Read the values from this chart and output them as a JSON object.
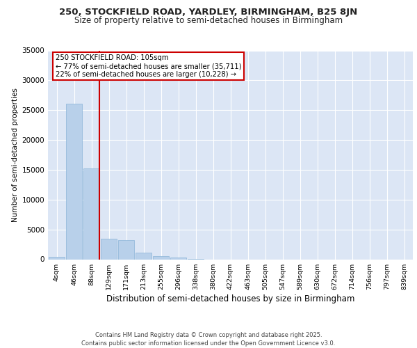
{
  "title": "250, STOCKFIELD ROAD, YARDLEY, BIRMINGHAM, B25 8JN",
  "subtitle": "Size of property relative to semi-detached houses in Birmingham",
  "xlabel": "Distribution of semi-detached houses by size in Birmingham",
  "ylabel": "Number of semi-detached properties",
  "footer": "Contains HM Land Registry data © Crown copyright and database right 2025.\nContains public sector information licensed under the Open Government Licence v3.0.",
  "bin_labels": [
    "4sqm",
    "46sqm",
    "88sqm",
    "129sqm",
    "171sqm",
    "213sqm",
    "255sqm",
    "296sqm",
    "338sqm",
    "380sqm",
    "422sqm",
    "463sqm",
    "505sqm",
    "547sqm",
    "589sqm",
    "630sqm",
    "672sqm",
    "714sqm",
    "756sqm",
    "797sqm",
    "839sqm"
  ],
  "bar_values": [
    400,
    26100,
    15200,
    3400,
    3250,
    1100,
    500,
    350,
    100,
    0,
    0,
    0,
    0,
    0,
    0,
    0,
    0,
    0,
    0,
    0,
    0
  ],
  "bar_color": "#b8d0ea",
  "bar_edge_color": "#8ab4d8",
  "background_color": "#dce6f5",
  "grid_color": "#ffffff",
  "ylim": [
    0,
    35000
  ],
  "yticks": [
    0,
    5000,
    10000,
    15000,
    20000,
    25000,
    30000,
    35000
  ],
  "annotation_line1": "250 STOCKFIELD ROAD: 105sqm",
  "annotation_line2": "← 77% of semi-detached houses are smaller (35,711)",
  "annotation_line3": "22% of semi-detached houses are larger (10,228) →",
  "annotation_box_color": "#cc0000",
  "vline_color": "#cc0000",
  "vline_x": 2.45
}
